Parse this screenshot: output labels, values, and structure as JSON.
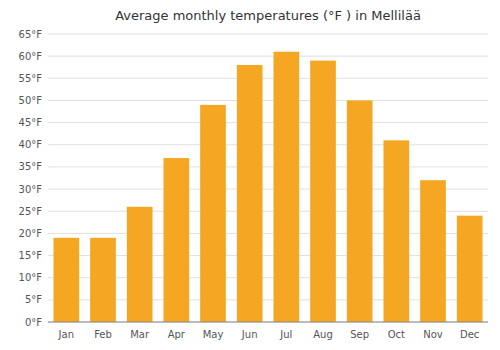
{
  "chart_data": {
    "type": "bar",
    "title": "Average monthly temperatures (°F ) in Mellilää",
    "categories": [
      "Jan",
      "Feb",
      "Mar",
      "Apr",
      "May",
      "Jun",
      "Jul",
      "Aug",
      "Sep",
      "Oct",
      "Nov",
      "Dec"
    ],
    "values": [
      19,
      19,
      26,
      37,
      49,
      58,
      61,
      59,
      50,
      41,
      32,
      24
    ],
    "color": "#F5A623",
    "ylim": [
      0,
      65
    ],
    "yticks": [
      {
        "value": 0,
        "label": "0°F"
      },
      {
        "value": 5,
        "label": "5°F"
      },
      {
        "value": 10,
        "label": "10°F"
      },
      {
        "value": 15,
        "label": "15°F"
      },
      {
        "value": 20,
        "label": "20°F"
      },
      {
        "value": 25,
        "label": "25°F"
      },
      {
        "value": 30,
        "label": "30°F"
      },
      {
        "value": 35,
        "label": "35°F"
      },
      {
        "value": 40,
        "label": "40°F"
      },
      {
        "value": 45,
        "label": "45°F"
      },
      {
        "value": 50,
        "label": "50°F"
      },
      {
        "value": 55,
        "label": "55°F"
      },
      {
        "value": 60,
        "label": "60°F"
      },
      {
        "value": 65,
        "label": "65°F"
      }
    ],
    "grid": true
  }
}
